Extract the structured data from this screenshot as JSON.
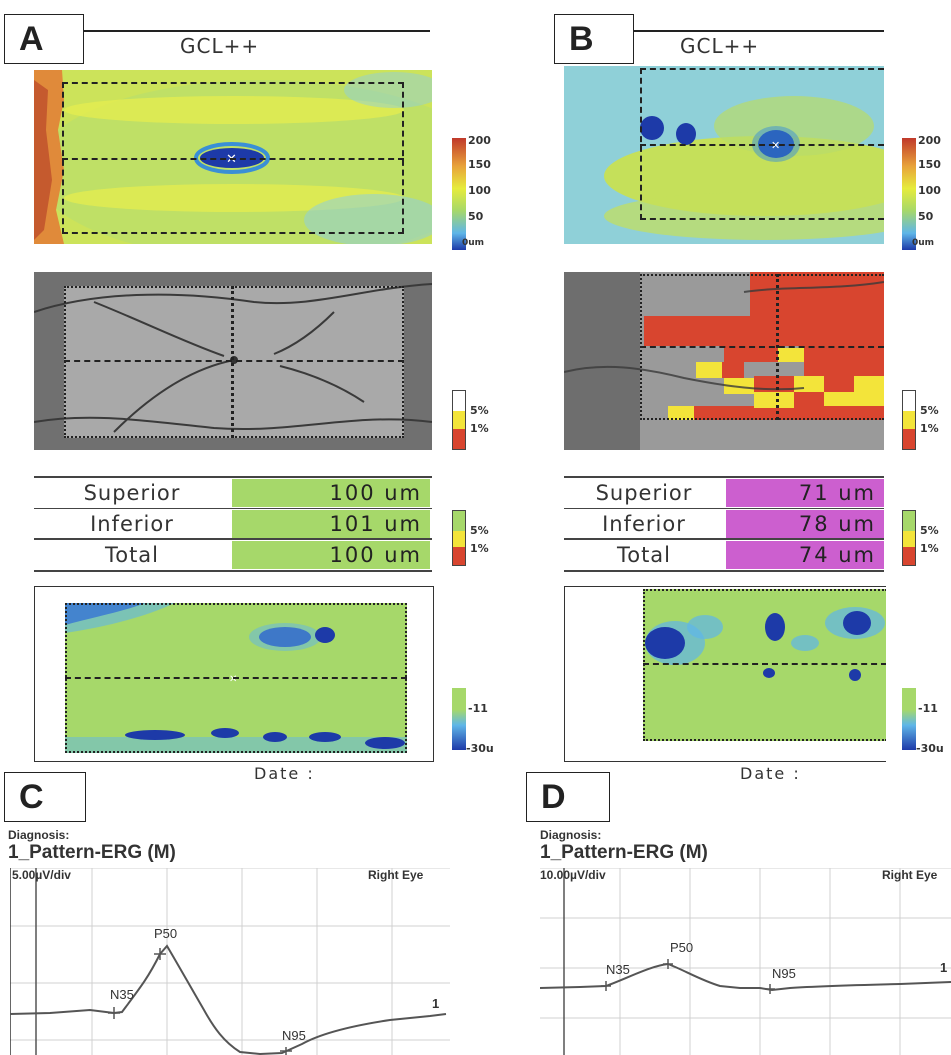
{
  "panels": {
    "a": {
      "label": "A",
      "header": "GCL++",
      "thickness_scale": [
        "200",
        "150",
        "100",
        "50",
        "0um"
      ],
      "sig_scale": [
        "5%",
        "1%"
      ],
      "table": [
        {
          "name": "Superior",
          "value": "100 um"
        },
        {
          "name": "Inferior",
          "value": "101 um"
        },
        {
          "name": "Total",
          "value": "100 um"
        }
      ],
      "table_scale": [
        "5%",
        "1%"
      ],
      "dev_scale": [
        "-11",
        "-30u"
      ],
      "date_label": "Date :"
    },
    "b": {
      "label": "B",
      "header": "GCL++",
      "thickness_scale": [
        "200",
        "150",
        "100",
        "50",
        "0um"
      ],
      "sig_scale": [
        "5%",
        "1%"
      ],
      "table": [
        {
          "name": "Superior",
          "value": "71 um"
        },
        {
          "name": "Inferior",
          "value": "78 um"
        },
        {
          "name": "Total",
          "value": "74 um"
        }
      ],
      "table_scale": [
        "5%",
        "1%"
      ],
      "dev_scale": [
        "-11",
        "-30u"
      ],
      "date_label": "Date :"
    },
    "c": {
      "label": "C",
      "diagnosis_label": "Diagnosis:",
      "test_name": "1_Pattern-ERG (M)",
      "scale": "5.00µV/div",
      "eye": "Right Eye",
      "peaks": [
        "N35",
        "P50",
        "N95"
      ],
      "trace_label": "1"
    },
    "d": {
      "label": "D",
      "diagnosis_label": "Diagnosis:",
      "test_name": "1_Pattern-ERG (M)",
      "scale": "10.00µV/div",
      "eye": "Right Eye",
      "peaks": [
        "N35",
        "P50",
        "N95"
      ],
      "trace_label": "1"
    }
  },
  "colors": {
    "normal_green": "#a6d86a",
    "abnormal_magenta": "#cc5fcf",
    "sig_red": "#d8452f",
    "sig_yellow": "#f3e43a"
  }
}
